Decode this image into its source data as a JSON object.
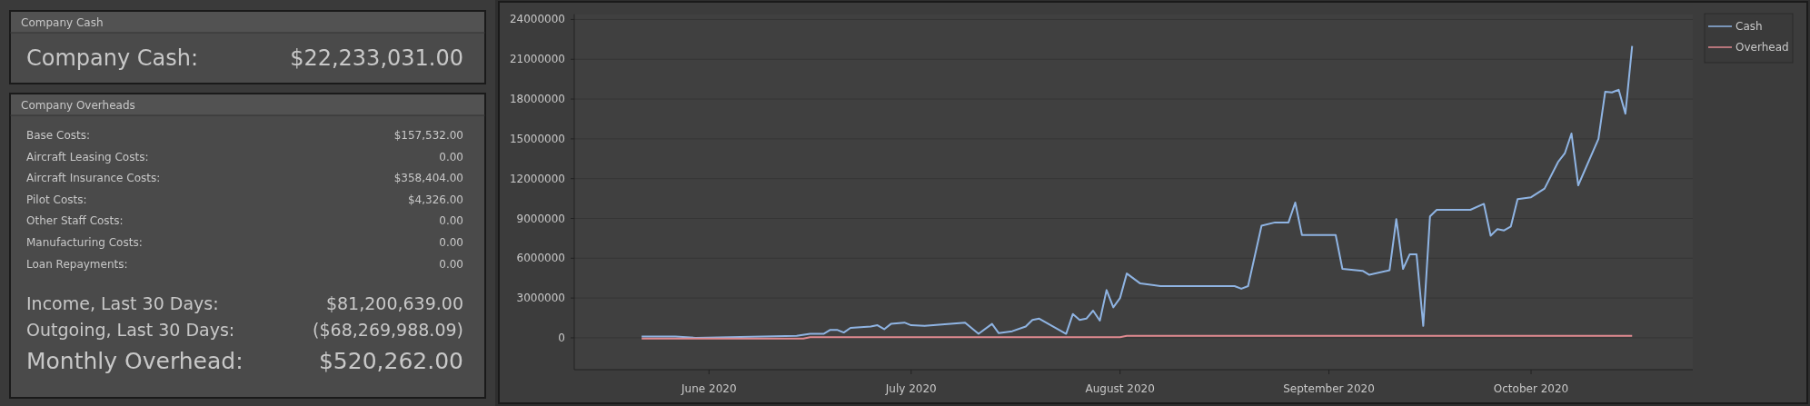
{
  "chart_data": [
    {
      "type": "other",
      "title": "Company Cash",
      "annotations": [
        "Company Cash:",
        "$22,233,031.00"
      ]
    },
    {
      "type": "other",
      "title": "Company Overheads",
      "annotations": [
        "Base Costs:",
        "$157,532.00",
        "Aircraft Leasing Costs:",
        "0.00",
        "Aircraft Insurance Costs:",
        "$358,404.00",
        "Pilot Costs:",
        "$4,326.00",
        "Other Staff Costs:",
        "0.00",
        "Manufacturing Costs:",
        "0.00",
        "Loan Repayments:",
        "0.00",
        "Income, Last 30 Days:",
        "$81,200,639.00",
        "Outgoing, Last 30 Days:",
        "($68,269,988.09)",
        "Monthly Overhead:",
        "$520,262.00"
      ]
    },
    {
      "type": "line",
      "xlim": [
        "2020-05-12",
        "2020-10-25"
      ],
      "xticks": [
        {
          "value": "2020-06-01",
          "label": "June 2020"
        },
        {
          "value": "2020-07-01",
          "label": "July 2020"
        },
        {
          "value": "2020-08-01",
          "label": "August 2020"
        },
        {
          "value": "2020-09-01",
          "label": "September 2020"
        },
        {
          "value": "2020-10-01",
          "label": "October 2020"
        }
      ],
      "ylim": [
        -2400000,
        24400000
      ],
      "yticks": [
        0,
        3000000,
        6000000,
        9000000,
        12000000,
        15000000,
        18000000,
        21000000,
        24000000
      ],
      "grid": "y",
      "legend": "top right",
      "marker": "none",
      "line_style": "solid",
      "series": [
        {
          "name": "Cash",
          "color": "#8fb4e3",
          "x": [
            "2020-05-22",
            "2020-05-27",
            "2020-05-30",
            "2020-06-14",
            "2020-06-16",
            "2020-06-18",
            "2020-06-19",
            "2020-06-20",
            "2020-06-21",
            "2020-06-22",
            "2020-06-25",
            "2020-06-26",
            "2020-06-27",
            "2020-06-28",
            "2020-06-30",
            "2020-07-01",
            "2020-07-03",
            "2020-07-09",
            "2020-07-11",
            "2020-07-13",
            "2020-07-14",
            "2020-07-16",
            "2020-07-18",
            "2020-07-19",
            "2020-07-20",
            "2020-07-24",
            "2020-07-25",
            "2020-07-26",
            "2020-07-27",
            "2020-07-28",
            "2020-07-29",
            "2020-07-30",
            "2020-07-31",
            "2020-08-01",
            "2020-08-02",
            "2020-08-04",
            "2020-08-07",
            "2020-08-18",
            "2020-08-19",
            "2020-08-20",
            "2020-08-22",
            "2020-08-24",
            "2020-08-26",
            "2020-08-27",
            "2020-08-28",
            "2020-09-02",
            "2020-09-03",
            "2020-09-04",
            "2020-09-06",
            "2020-09-07",
            "2020-09-10",
            "2020-09-11",
            "2020-09-12",
            "2020-09-13",
            "2020-09-14",
            "2020-09-15",
            "2020-09-16",
            "2020-09-17",
            "2020-09-22",
            "2020-09-24",
            "2020-09-25",
            "2020-09-26",
            "2020-09-27",
            "2020-09-28",
            "2020-09-29",
            "2020-10-01",
            "2020-10-03",
            "2020-10-05",
            "2020-10-06",
            "2020-10-07",
            "2020-10-08",
            "2020-10-11",
            "2020-10-12",
            "2020-10-13",
            "2020-10-14",
            "2020-10-15",
            "2020-10-16"
          ],
          "values": [
            100000,
            100000,
            0,
            150000,
            300000,
            300000,
            600000,
            600000,
            400000,
            750000,
            850000,
            950000,
            650000,
            1050000,
            1150000,
            950000,
            900000,
            1150000,
            300000,
            1050000,
            350000,
            500000,
            850000,
            1350000,
            1450000,
            300000,
            1800000,
            1350000,
            1450000,
            2050000,
            1300000,
            3600000,
            2300000,
            3000000,
            4850000,
            4100000,
            3900000,
            3900000,
            3700000,
            3900000,
            8450000,
            8700000,
            8700000,
            10200000,
            7750000,
            7750000,
            5200000,
            5150000,
            5050000,
            4750000,
            5100000,
            8950000,
            5200000,
            6300000,
            6300000,
            900000,
            9150000,
            9650000,
            9650000,
            10100000,
            7700000,
            8200000,
            8100000,
            8400000,
            10450000,
            10600000,
            11250000,
            13250000,
            13900000,
            15400000,
            11500000,
            15000000,
            18550000,
            18500000,
            18700000,
            16900000,
            22000000
          ]
        },
        {
          "name": "Overhead",
          "color": "#e08a90",
          "x": [
            "2020-05-22",
            "2020-06-15",
            "2020-06-16",
            "2020-08-01",
            "2020-08-02",
            "2020-10-16"
          ],
          "values": [
            -50000,
            -50000,
            50000,
            50000,
            150000,
            150000
          ]
        }
      ]
    }
  ]
}
